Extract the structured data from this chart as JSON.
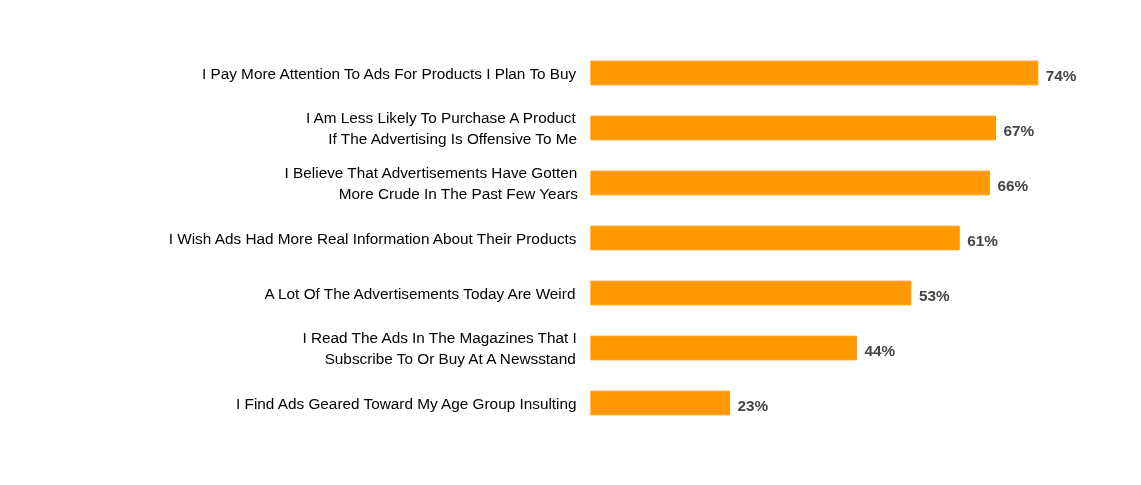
{
  "chart_data": {
    "type": "bar",
    "orientation": "horizontal",
    "categories": [
      "I Pay More Attention To Ads For Products I Plan To Buy",
      "I Am Less Likely To Purchase A Product\nIf The Advertising Is Offensive To Me",
      "I Believe That Advertisements Have Gotten\nMore Crude In The Past Few Years",
      "I Wish Ads Had More Real Information About Their Products",
      "A Lot Of The Advertisements Today Are Weird",
      "I Read The Ads In The Magazines That I\nSubscribe To Or Buy At A Newsstand",
      "I Find Ads Geared Toward My Age Group Insulting"
    ],
    "values": [
      74,
      67,
      66,
      61,
      53,
      44,
      23
    ],
    "color": "#ff9900",
    "value_labels": [
      "74%",
      "67%",
      "66%",
      "61%",
      "53%",
      "44%",
      "23%"
    ],
    "grid": false
  }
}
